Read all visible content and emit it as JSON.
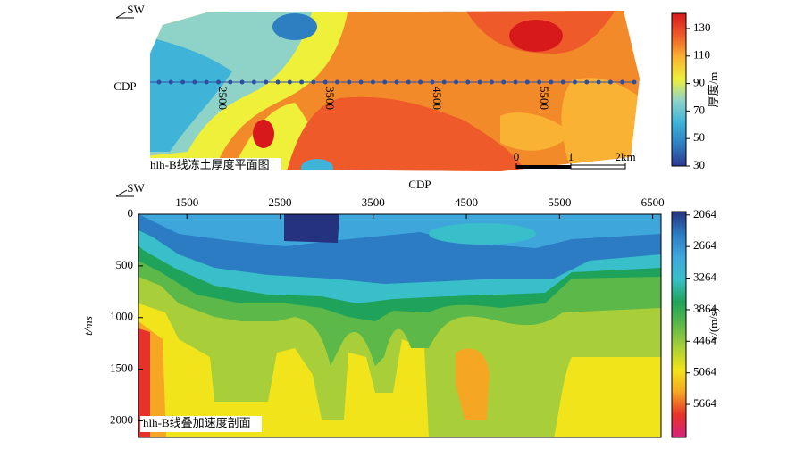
{
  "chart_data": [
    {
      "type": "contour-map",
      "title": "hlh-B线冻土厚度平面图",
      "direction": "SW",
      "y_label": "CDP",
      "cdp_labels": [
        2500,
        3500,
        4500,
        5500
      ],
      "scale_bar": {
        "ticks": [
          0,
          1,
          {
            "value": 2,
            "label": "2km"
          }
        ]
      },
      "colorbar": {
        "label": "厚度/m",
        "lim": [
          30,
          141
        ],
        "ticks": [
          30,
          50,
          70,
          90,
          110,
          130
        ],
        "inverted": false,
        "colors": [
          "#2b3990",
          "#2e7fc1",
          "#3fb4d8",
          "#8fd3c8",
          "#eef03a",
          "#f9b233",
          "#ee5a2a",
          "#d7191c"
        ]
      }
    },
    {
      "type": "contour-section",
      "title": "hlh-B线叠加速度剖面",
      "direction": "SW",
      "x_label": "CDP",
      "y_label": "t/ms",
      "xlim": [
        980,
        6590
      ],
      "xticks": [
        1500,
        2500,
        3500,
        4500,
        5500,
        6500
      ],
      "ylim": [
        0,
        2160
      ],
      "yticks": [
        0,
        500,
        1000,
        1500,
        2000
      ],
      "y_inverted": true,
      "colorbar": {
        "label": "v/(m/s)",
        "lim": [
          2000,
          6290
        ],
        "ticks": [
          2064,
          2664,
          3264,
          3864,
          4464,
          5064,
          5664
        ],
        "inverted": true,
        "colors": [
          "#24327f",
          "#2b7cc3",
          "#3fa6dc",
          "#39bfc9",
          "#1fa35a",
          "#5cb848",
          "#a8cf3a",
          "#f2e41a",
          "#f5a623",
          "#e8312a",
          "#d6247f"
        ]
      }
    }
  ]
}
